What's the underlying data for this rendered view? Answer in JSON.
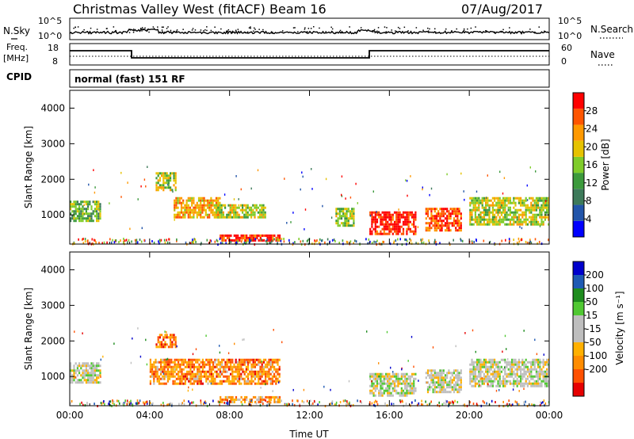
{
  "header": {
    "title": "Christmas Valley West (fitACF)",
    "beam": "Beam 16",
    "date": "07/Aug/2017"
  },
  "noise_panel": {
    "left_label": "N.Sky",
    "right_label": "N.Search",
    "left_ticks": [
      "10^5",
      "10^0"
    ],
    "right_ticks": [
      "10^5",
      "10^0"
    ]
  },
  "freq_panel": {
    "left_label_line1": "Freq.",
    "left_label_line2": "[MHz]",
    "right_label": "Nave",
    "left_ticks": [
      "18",
      "8"
    ],
    "right_ticks": [
      "60",
      "0"
    ]
  },
  "cpid_panel": {
    "label": "CPID",
    "text": "normal (fast) 151 RF"
  },
  "colors": {
    "power_scale": [
      "#0000ff",
      "#2255aa",
      "#3d7a5a",
      "#3c9a3c",
      "#7fcc2a",
      "#e6c200",
      "#ff9900",
      "#ff5500",
      "#ff0000"
    ],
    "velocity_scale": [
      "#e60000",
      "#ff5000",
      "#ff8c00",
      "#ffb000",
      "#bebebe",
      "#bebebe",
      "#50c832",
      "#1e8c1e",
      "#1e5ab4",
      "#0000cc"
    ]
  },
  "chart_data": [
    {
      "type": "heatmap",
      "name": "power",
      "ylabel": "Slant Range [km]",
      "xlabel": "Time UT",
      "x_range": [
        "00:00",
        "24:00"
      ],
      "ylim": [
        180,
        4500
      ],
      "y_ticks": [
        1000,
        2000,
        3000,
        4000
      ],
      "x_ticks": [
        "00:00",
        "04:00",
        "08:00",
        "12:00",
        "16:00",
        "20:00",
        "00:00"
      ],
      "colorbar": {
        "label": "Power [dB]",
        "range": [
          0,
          32
        ],
        "ticks": [
          4,
          8,
          12,
          16,
          20,
          24,
          28
        ]
      },
      "regions": [
        {
          "t0": 0.0,
          "t1": 1.5,
          "r0": 800,
          "r1": 1400,
          "level": 0.45
        },
        {
          "t0": 4.3,
          "t1": 5.3,
          "r0": 1700,
          "r1": 2200,
          "level": 0.55
        },
        {
          "t0": 5.2,
          "t1": 7.5,
          "r0": 900,
          "r1": 1500,
          "level": 0.7
        },
        {
          "t0": 7.3,
          "t1": 9.8,
          "r0": 900,
          "r1": 1300,
          "level": 0.55
        },
        {
          "t0": 7.5,
          "t1": 10.5,
          "r0": 250,
          "r1": 450,
          "level": 0.9
        },
        {
          "t0": 13.3,
          "t1": 14.2,
          "r0": 700,
          "r1": 1200,
          "level": 0.5
        },
        {
          "t0": 15.0,
          "t1": 17.3,
          "r0": 450,
          "r1": 1100,
          "level": 0.93
        },
        {
          "t0": 17.8,
          "t1": 19.6,
          "r0": 550,
          "r1": 1200,
          "level": 0.85
        },
        {
          "t0": 20.0,
          "t1": 24.0,
          "r0": 700,
          "r1": 1500,
          "level": 0.55
        }
      ]
    },
    {
      "type": "heatmap",
      "name": "velocity",
      "ylabel": "Slant Range [km]",
      "xlabel": "Time UT",
      "x_range": [
        "00:00",
        "24:00"
      ],
      "ylim": [
        180,
        4500
      ],
      "y_ticks": [
        1000,
        2000,
        3000,
        4000
      ],
      "x_ticks": [
        "00:00",
        "04:00",
        "08:00",
        "12:00",
        "16:00",
        "20:00",
        "00:00"
      ],
      "colorbar": {
        "label": "Velocity [m s⁻¹]",
        "ticks": [
          "200",
          "100",
          "50",
          "15",
          "-15",
          "-50",
          "-100",
          "-200"
        ]
      },
      "regions": [
        {
          "t0": 0.0,
          "t1": 1.5,
          "r0": 800,
          "r1": 1400,
          "level": 0.5
        },
        {
          "t0": 4.3,
          "t1": 5.3,
          "r0": 1800,
          "r1": 2200,
          "level": 0.22
        },
        {
          "t0": 4.0,
          "t1": 10.5,
          "r0": 800,
          "r1": 1500,
          "level": 0.25
        },
        {
          "t0": 7.5,
          "t1": 10.5,
          "r0": 250,
          "r1": 450,
          "level": 0.28
        },
        {
          "t0": 15.0,
          "t1": 17.3,
          "r0": 450,
          "r1": 1100,
          "level": 0.5
        },
        {
          "t0": 17.8,
          "t1": 19.6,
          "r0": 550,
          "r1": 1200,
          "level": 0.5
        },
        {
          "t0": 20.0,
          "t1": 24.0,
          "r0": 700,
          "r1": 1500,
          "level": 0.5
        }
      ]
    }
  ]
}
